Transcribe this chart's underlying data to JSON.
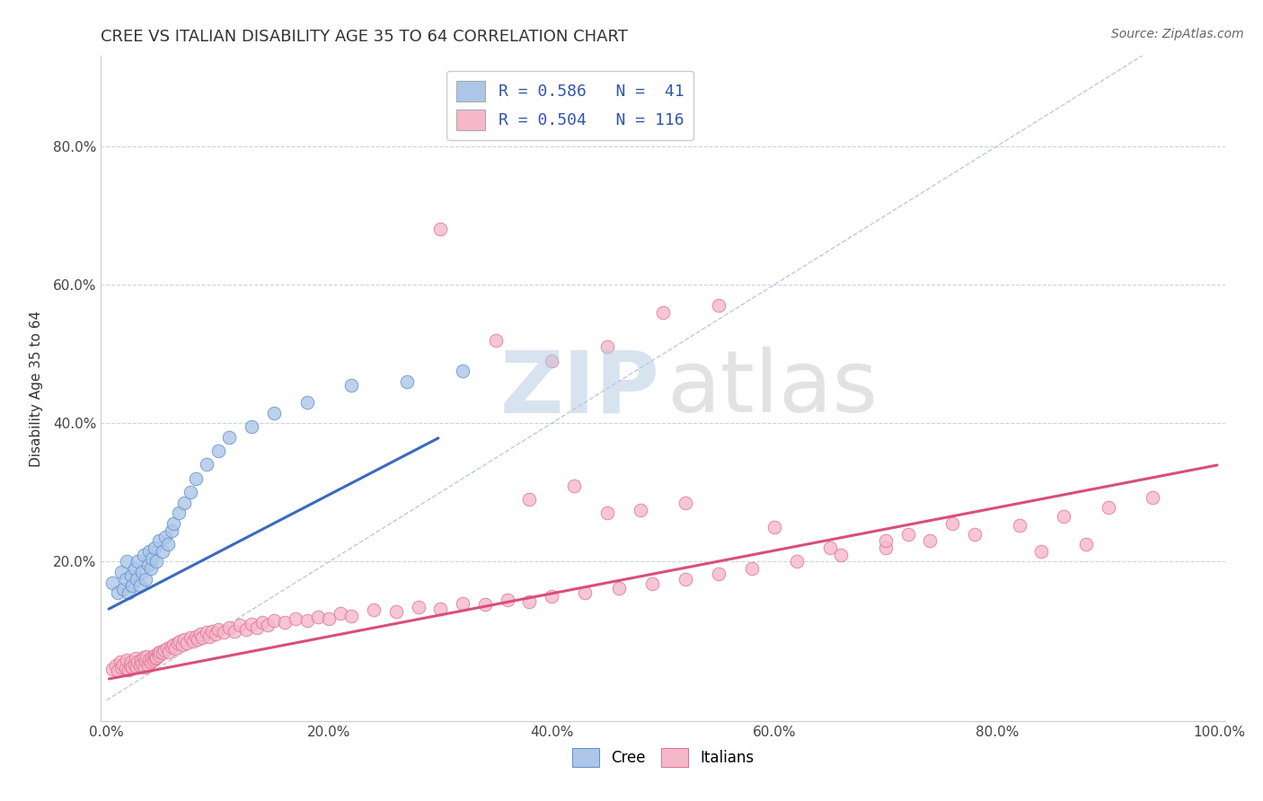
{
  "title": "CREE VS ITALIAN DISABILITY AGE 35 TO 64 CORRELATION CHART",
  "source": "Source: ZipAtlas.com",
  "xlabel": "",
  "ylabel": "Disability Age 35 to 64",
  "xlim": [
    -0.005,
    1.005
  ],
  "ylim": [
    -0.03,
    0.93
  ],
  "xticks": [
    0.0,
    0.2,
    0.4,
    0.6,
    0.8,
    1.0
  ],
  "yticks": [
    0.2,
    0.4,
    0.6,
    0.8
  ],
  "xticklabels": [
    "0.0%",
    "20.0%",
    "40.0%",
    "60.0%",
    "80.0%",
    "100.0%"
  ],
  "yticklabels": [
    "20.0%",
    "40.0%",
    "60.0%",
    "80.0%"
  ],
  "cree_R": 0.586,
  "cree_N": 41,
  "italian_R": 0.504,
  "italian_N": 116,
  "cree_color": "#adc6e8",
  "cree_edge_color": "#5b8fcc",
  "cree_line_color": "#3a6abf",
  "italian_color": "#f5b8cb",
  "italian_edge_color": "#e07090",
  "italian_line_color": "#d94f78",
  "background_color": "#ffffff",
  "grid_color": "#c8d4e8",
  "legend_text_color": "#3355aa",
  "title_color": "#333333",
  "cree_x": [
    0.005,
    0.01,
    0.013,
    0.015,
    0.017,
    0.018,
    0.02,
    0.022,
    0.023,
    0.025,
    0.027,
    0.028,
    0.03,
    0.032,
    0.033,
    0.035,
    0.037,
    0.038,
    0.04,
    0.041,
    0.043,
    0.045,
    0.047,
    0.05,
    0.053,
    0.055,
    0.058,
    0.06,
    0.065,
    0.07,
    0.075,
    0.08,
    0.09,
    0.1,
    0.11,
    0.13,
    0.15,
    0.18,
    0.22,
    0.27,
    0.32
  ],
  "cree_y": [
    0.17,
    0.155,
    0.185,
    0.16,
    0.175,
    0.2,
    0.155,
    0.18,
    0.165,
    0.19,
    0.175,
    0.2,
    0.165,
    0.185,
    0.21,
    0.175,
    0.195,
    0.215,
    0.19,
    0.205,
    0.22,
    0.2,
    0.23,
    0.215,
    0.235,
    0.225,
    0.245,
    0.255,
    0.27,
    0.285,
    0.3,
    0.32,
    0.34,
    0.36,
    0.38,
    0.395,
    0.415,
    0.43,
    0.455,
    0.46,
    0.475
  ],
  "italian_x": [
    0.005,
    0.008,
    0.01,
    0.012,
    0.013,
    0.015,
    0.017,
    0.018,
    0.02,
    0.021,
    0.022,
    0.023,
    0.025,
    0.026,
    0.027,
    0.028,
    0.03,
    0.031,
    0.032,
    0.033,
    0.034,
    0.035,
    0.036,
    0.037,
    0.038,
    0.04,
    0.041,
    0.042,
    0.043,
    0.044,
    0.045,
    0.046,
    0.047,
    0.048,
    0.05,
    0.052,
    0.054,
    0.056,
    0.058,
    0.06,
    0.062,
    0.064,
    0.066,
    0.068,
    0.07,
    0.072,
    0.075,
    0.078,
    0.08,
    0.082,
    0.084,
    0.086,
    0.09,
    0.092,
    0.095,
    0.098,
    0.1,
    0.105,
    0.11,
    0.115,
    0.12,
    0.125,
    0.13,
    0.135,
    0.14,
    0.145,
    0.15,
    0.16,
    0.17,
    0.18,
    0.19,
    0.2,
    0.21,
    0.22,
    0.24,
    0.26,
    0.28,
    0.3,
    0.32,
    0.34,
    0.36,
    0.38,
    0.4,
    0.43,
    0.46,
    0.49,
    0.52,
    0.55,
    0.58,
    0.62,
    0.66,
    0.7,
    0.74,
    0.78,
    0.82,
    0.86,
    0.9,
    0.94,
    0.38,
    0.42,
    0.45,
    0.48,
    0.52,
    0.6,
    0.65,
    0.7,
    0.72,
    0.76,
    0.84,
    0.88,
    0.3,
    0.35,
    0.4,
    0.45,
    0.5,
    0.55
  ],
  "italian_y": [
    0.045,
    0.05,
    0.042,
    0.055,
    0.048,
    0.052,
    0.046,
    0.058,
    0.044,
    0.05,
    0.055,
    0.047,
    0.052,
    0.06,
    0.048,
    0.055,
    0.05,
    0.058,
    0.053,
    0.062,
    0.048,
    0.056,
    0.063,
    0.05,
    0.058,
    0.055,
    0.062,
    0.058,
    0.065,
    0.06,
    0.062,
    0.068,
    0.065,
    0.07,
    0.068,
    0.072,
    0.075,
    0.07,
    0.078,
    0.08,
    0.075,
    0.082,
    0.085,
    0.08,
    0.088,
    0.082,
    0.09,
    0.085,
    0.092,
    0.088,
    0.095,
    0.09,
    0.098,
    0.092,
    0.1,
    0.095,
    0.102,
    0.098,
    0.105,
    0.1,
    0.108,
    0.102,
    0.11,
    0.105,
    0.112,
    0.108,
    0.115,
    0.112,
    0.118,
    0.115,
    0.12,
    0.118,
    0.125,
    0.122,
    0.13,
    0.128,
    0.135,
    0.132,
    0.14,
    0.138,
    0.145,
    0.142,
    0.15,
    0.155,
    0.162,
    0.168,
    0.175,
    0.182,
    0.19,
    0.2,
    0.21,
    0.22,
    0.23,
    0.24,
    0.252,
    0.265,
    0.278,
    0.292,
    0.29,
    0.31,
    0.27,
    0.275,
    0.285,
    0.25,
    0.22,
    0.23,
    0.24,
    0.255,
    0.215,
    0.225,
    0.68,
    0.52,
    0.49,
    0.51,
    0.56,
    0.57
  ],
  "cree_trend_x0": 0.0,
  "cree_trend_x1": 0.3,
  "italian_trend_x0": 0.0,
  "italian_trend_x1": 1.0,
  "cree_trend_y0": 0.13,
  "cree_trend_y1": 0.38,
  "italian_trend_y0": 0.03,
  "italian_trend_y1": 0.34
}
